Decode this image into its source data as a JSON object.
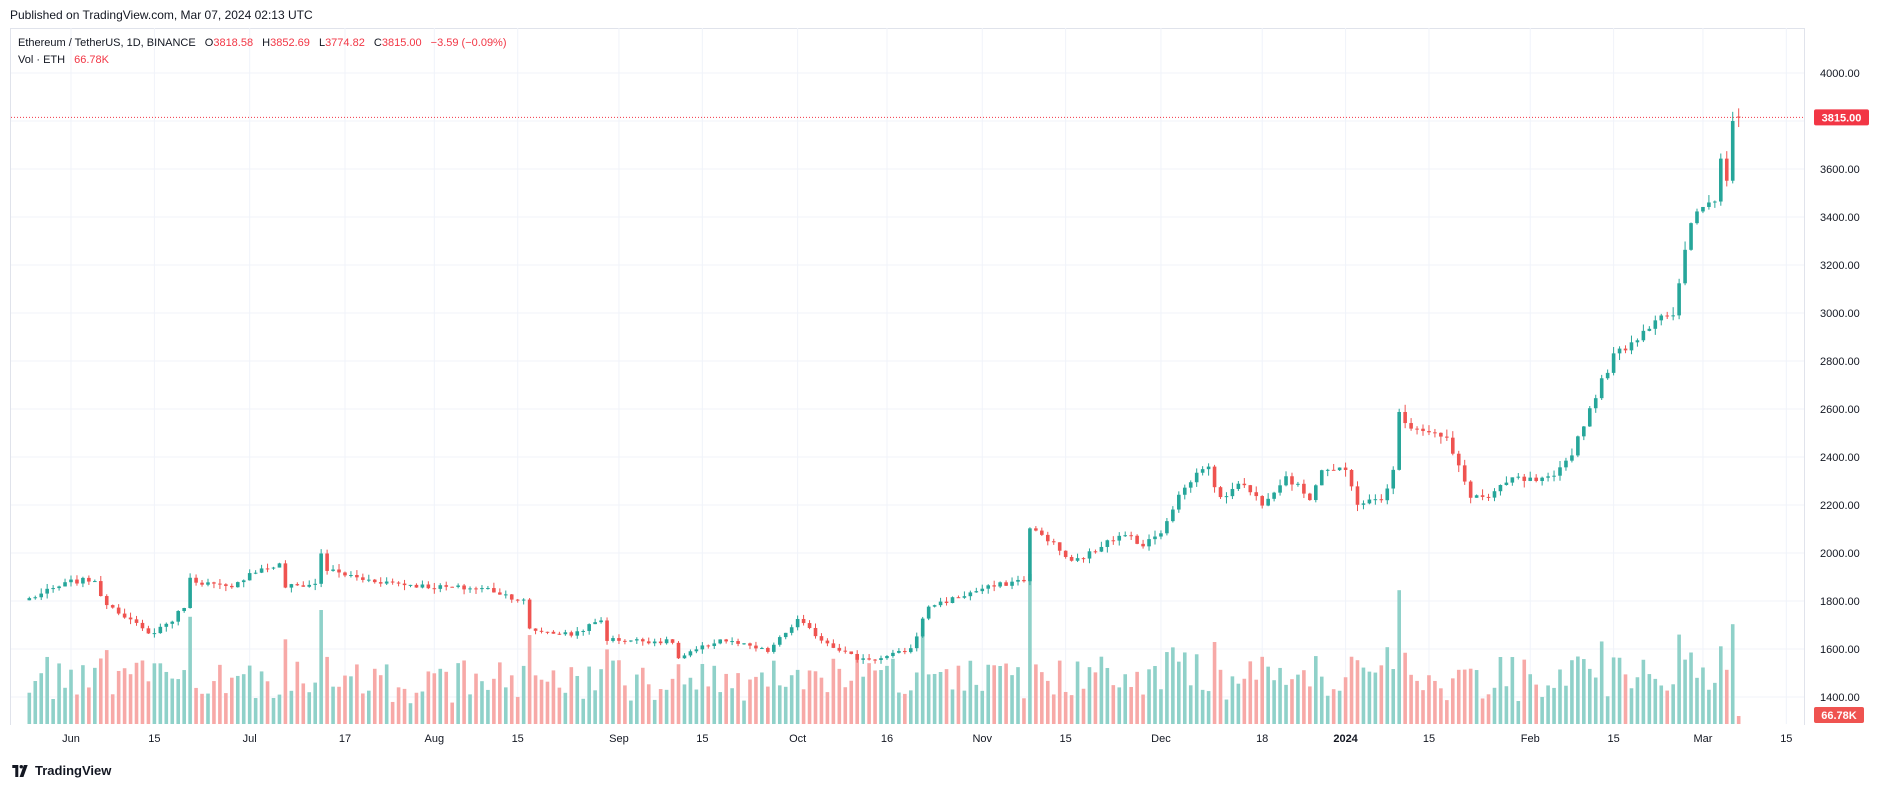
{
  "header": {
    "published": "Published on TradingView.com, Mar 07, 2024 02:13 UTC"
  },
  "legend": {
    "symbol": "Ethereum / TetherUS, 1D, BINANCE",
    "o_label": "O",
    "o_value": "3818.58",
    "h_label": "H",
    "h_value": "3852.69",
    "l_label": "L",
    "l_value": "3774.82",
    "c_label": "C",
    "c_value": "3815.00",
    "change": "−3.59 (−0.09%)",
    "vol_label": "Vol · ETH",
    "vol_value": "66.78K"
  },
  "footer": {
    "brand": "TradingView"
  },
  "colors": {
    "up": "#26a69a",
    "down": "#ef5350",
    "vol_up": "#8fd1c9",
    "vol_down": "#f7a9a7",
    "price_tag": "#f23645",
    "grid": "#f0f3fa"
  },
  "chart_data": {
    "type": "candlestick",
    "symbol": "ETHUSDT",
    "interval": "1D",
    "ylim": [
      1300,
      4100
    ],
    "x_ticks": [
      "Jun",
      "15",
      "Jul",
      "17",
      "Aug",
      "15",
      "Sep",
      "15",
      "Oct",
      "16",
      "Nov",
      "15",
      "Dec",
      "18",
      "2024",
      "15",
      "Feb",
      "15",
      "Mar",
      "15"
    ],
    "y_ticks": [
      "4000.00",
      "3800.00",
      "3600.00",
      "3400.00",
      "3200.00",
      "3000.00",
      "2800.00",
      "2600.00",
      "2400.00",
      "2200.00",
      "2000.00",
      "1800.00",
      "1600.00",
      "1400.00"
    ],
    "last_price_label": "3815.00",
    "last_volume_label": "66.78K",
    "anchors": [
      [
        "2023-05-25",
        1810
      ],
      [
        "2023-06-01",
        1880
      ],
      [
        "2023-06-05",
        1890
      ],
      [
        "2023-06-06",
        1810
      ],
      [
        "2023-06-10",
        1740
      ],
      [
        "2023-06-14",
        1660
      ],
      [
        "2023-06-18",
        1720
      ],
      [
        "2023-06-20",
        1780
      ],
      [
        "2023-06-21",
        1890
      ],
      [
        "2023-06-28",
        1850
      ],
      [
        "2023-07-01",
        1920
      ],
      [
        "2023-07-06",
        1950
      ],
      [
        "2023-07-07",
        1860
      ],
      [
        "2023-07-12",
        1870
      ],
      [
        "2023-07-13",
        2000
      ],
      [
        "2023-07-14",
        1930
      ],
      [
        "2023-07-20",
        1890
      ],
      [
        "2023-07-31",
        1860
      ],
      [
        "2023-08-10",
        1850
      ],
      [
        "2023-08-16",
        1800
      ],
      [
        "2023-08-17",
        1680
      ],
      [
        "2023-08-24",
        1660
      ],
      [
        "2023-08-29",
        1720
      ],
      [
        "2023-08-30",
        1640
      ],
      [
        "2023-09-10",
        1630
      ],
      [
        "2023-09-11",
        1560
      ],
      [
        "2023-09-18",
        1640
      ],
      [
        "2023-09-26",
        1590
      ],
      [
        "2023-10-01",
        1720
      ],
      [
        "2023-10-05",
        1640
      ],
      [
        "2023-10-11",
        1560
      ],
      [
        "2023-10-15",
        1560
      ],
      [
        "2023-10-20",
        1600
      ],
      [
        "2023-10-23",
        1780
      ],
      [
        "2023-10-26",
        1800
      ],
      [
        "2023-11-01",
        1850
      ],
      [
        "2023-11-08",
        1890
      ],
      [
        "2023-11-09",
        2100
      ],
      [
        "2023-11-12",
        2060
      ],
      [
        "2023-11-16",
        1960
      ],
      [
        "2023-11-20",
        2010
      ],
      [
        "2023-11-22",
        2060
      ],
      [
        "2023-11-26",
        2070
      ],
      [
        "2023-11-28",
        2030
      ],
      [
        "2023-12-01",
        2090
      ],
      [
        "2023-12-04",
        2240
      ],
      [
        "2023-12-08",
        2360
      ],
      [
        "2023-12-09",
        2350
      ],
      [
        "2023-12-11",
        2220
      ],
      [
        "2023-12-14",
        2300
      ],
      [
        "2023-12-18",
        2210
      ],
      [
        "2023-12-22",
        2320
      ],
      [
        "2023-12-26",
        2230
      ],
      [
        "2023-12-28",
        2350
      ],
      [
        "2024-01-01",
        2340
      ],
      [
        "2024-01-03",
        2210
      ],
      [
        "2024-01-07",
        2220
      ],
      [
        "2024-01-09",
        2340
      ],
      [
        "2024-01-10",
        2580
      ],
      [
        "2024-01-12",
        2530
      ],
      [
        "2024-01-15",
        2510
      ],
      [
        "2024-01-18",
        2470
      ],
      [
        "2024-01-22",
        2240
      ],
      [
        "2024-01-25",
        2230
      ],
      [
        "2024-01-29",
        2310
      ],
      [
        "2024-02-02",
        2300
      ],
      [
        "2024-02-05",
        2310
      ],
      [
        "2024-02-08",
        2420
      ],
      [
        "2024-02-12",
        2660
      ],
      [
        "2024-02-15",
        2820
      ],
      [
        "2024-02-19",
        2900
      ],
      [
        "2024-02-23",
        3000
      ],
      [
        "2024-02-25",
        2980
      ],
      [
        "2024-02-28",
        3380
      ],
      [
        "2024-03-01",
        3440
      ],
      [
        "2024-03-03",
        3480
      ],
      [
        "2024-03-04",
        3640
      ],
      [
        "2024-03-05",
        3550
      ],
      [
        "2024-03-06",
        3818.58
      ],
      [
        "2024-03-07",
        3815
      ]
    ],
    "last_candle": {
      "date": "2024-03-07",
      "open": 3818.58,
      "high": 3852.69,
      "low": 3774.82,
      "close": 3815.0,
      "volume": "66.78K"
    }
  }
}
